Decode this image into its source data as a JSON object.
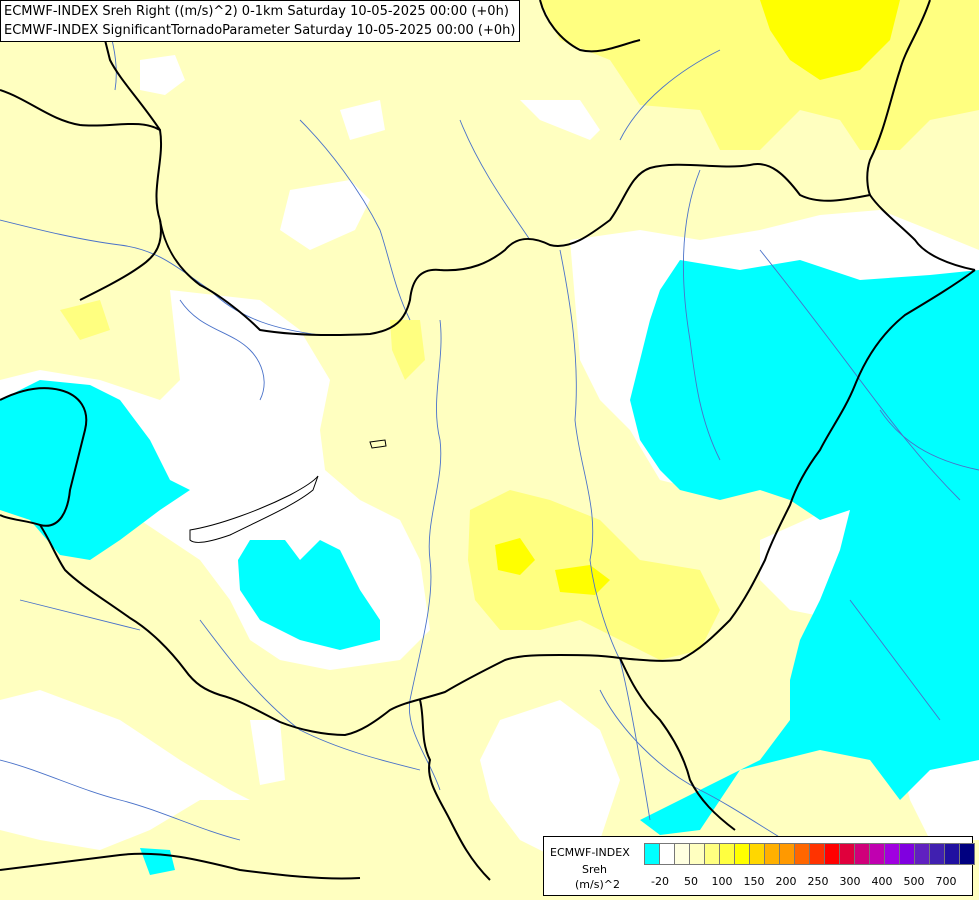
{
  "header": {
    "line1": "ECMWF-INDEX Sreh Right ((m/s)^2) 0-1km Saturday 10-05-2025 00:00 (+0h)",
    "line2": "ECMWF-INDEX SignificantTornadoParameter Saturday 10-05-2025 00:00 (+0h)"
  },
  "map": {
    "colors": {
      "background": "#ffffc0",
      "white_zone": "#ffffff",
      "cyan_zone": "#00ffff",
      "light_yellow": "#ffff80",
      "yellow": "#ffff00",
      "border_line": "#000000",
      "river_line": "#4a72c9"
    }
  },
  "legend": {
    "title": "ECMWF-INDEX",
    "variable": "Sreh",
    "unit": "(m/s)^2",
    "colors": [
      "#00ffff",
      "#ffffff",
      "#ffffe0",
      "#ffffc0",
      "#ffff80",
      "#ffff40",
      "#ffff00",
      "#ffd700",
      "#ffb000",
      "#ff9900",
      "#ff6600",
      "#ff3300",
      "#ff0000",
      "#e0003c",
      "#d0007a",
      "#c000b0",
      "#a000e0",
      "#8000e0",
      "#6020c0",
      "#4020b0",
      "#2010a0",
      "#000080"
    ],
    "ticks": [
      "-20",
      "50",
      "100",
      "150",
      "200",
      "250",
      "300",
      "400",
      "500",
      "700"
    ]
  }
}
